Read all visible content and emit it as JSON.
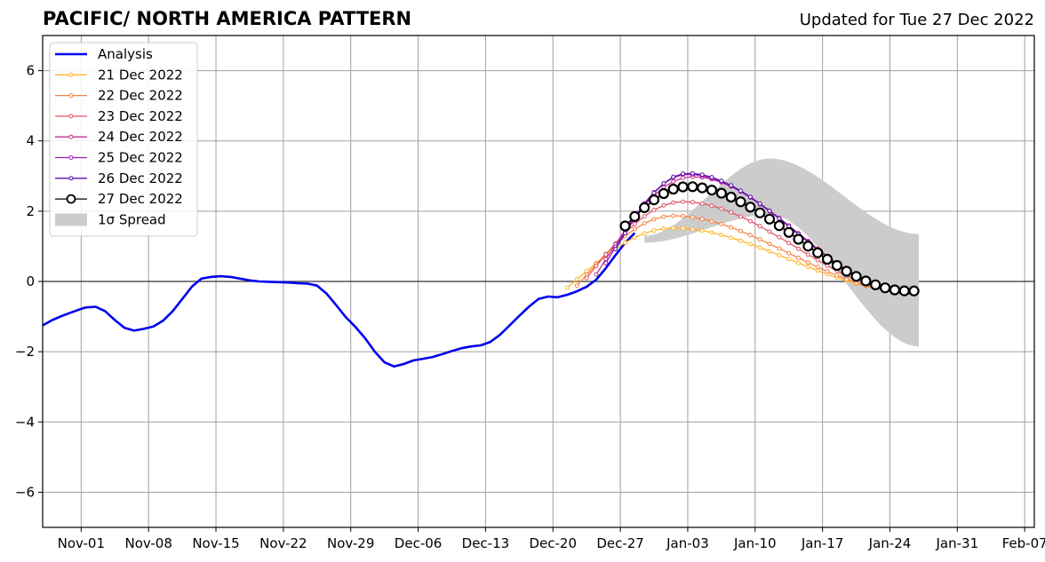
{
  "title": "PACIFIC/ NORTH AMERICA PATTERN",
  "subtitle": "Updated for Tue 27 Dec 2022",
  "chart_data": {
    "type": "line",
    "title": "PACIFIC/ NORTH AMERICA PATTERN",
    "subtitle": "Updated for Tue 27 Dec 2022",
    "xlabel": "",
    "ylabel": "",
    "x_range_days": [
      -4,
      99
    ],
    "ylim": [
      -7,
      7
    ],
    "y_ticks": [
      -6,
      -4,
      -2,
      0,
      2,
      4,
      6
    ],
    "x_tick_days": [
      0,
      7,
      14,
      21,
      28,
      35,
      42,
      49,
      56,
      63,
      70,
      77,
      84,
      91,
      98
    ],
    "x_tick_labels": [
      "Nov-01",
      "Nov-08",
      "Nov-15",
      "Nov-22",
      "Nov-29",
      "Dec-06",
      "Dec-13",
      "Dec-20",
      "Dec-27",
      "Jan-03",
      "Jan-10",
      "Jan-17",
      "Jan-24",
      "Jan-31",
      "Feb-07"
    ],
    "grid": true,
    "legend_position": "top-left",
    "analysis": {
      "name": "Analysis",
      "color": "#0000ee",
      "start_date": "Oct 28",
      "points": [
        [
          -4,
          -1.25
        ],
        [
          -3,
          -1.1
        ],
        [
          -2,
          -0.98
        ],
        [
          -1,
          -0.88
        ],
        [
          0,
          -0.78
        ],
        [
          0.5,
          -0.74
        ],
        [
          1.5,
          -0.72
        ],
        [
          2.5,
          -0.85
        ],
        [
          3.5,
          -1.1
        ],
        [
          4.5,
          -1.32
        ],
        [
          5.5,
          -1.4
        ],
        [
          6.5,
          -1.35
        ],
        [
          7.5,
          -1.28
        ],
        [
          8.5,
          -1.12
        ],
        [
          9.5,
          -0.85
        ],
        [
          10.5,
          -0.5
        ],
        [
          11.5,
          -0.15
        ],
        [
          12.5,
          0.08
        ],
        [
          13.5,
          0.13
        ],
        [
          14.5,
          0.15
        ],
        [
          15.5,
          0.13
        ],
        [
          16.5,
          0.08
        ],
        [
          17.5,
          0.03
        ],
        [
          18.5,
          0.0
        ],
        [
          19.5,
          -0.01
        ],
        [
          20.5,
          -0.02
        ],
        [
          21.5,
          -0.03
        ],
        [
          22.5,
          -0.05
        ],
        [
          23.5,
          -0.06
        ],
        [
          24.5,
          -0.12
        ],
        [
          25.5,
          -0.35
        ],
        [
          26.5,
          -0.68
        ],
        [
          27.5,
          -1.02
        ],
        [
          28.5,
          -1.3
        ],
        [
          29.5,
          -1.62
        ],
        [
          30.5,
          -2.0
        ],
        [
          31.5,
          -2.3
        ],
        [
          32.5,
          -2.42
        ],
        [
          33.5,
          -2.35
        ],
        [
          34.5,
          -2.25
        ],
        [
          35.5,
          -2.2
        ],
        [
          36.5,
          -2.15
        ],
        [
          37.5,
          -2.07
        ],
        [
          38.5,
          -1.98
        ],
        [
          39.5,
          -1.9
        ],
        [
          40.5,
          -1.85
        ],
        [
          41.5,
          -1.82
        ],
        [
          42.5,
          -1.72
        ],
        [
          43.5,
          -1.52
        ],
        [
          44.5,
          -1.25
        ],
        [
          45.5,
          -0.98
        ],
        [
          46.5,
          -0.72
        ],
        [
          47.5,
          -0.5
        ],
        [
          48.5,
          -0.43
        ],
        [
          49.5,
          -0.45
        ],
        [
          50.5,
          -0.38
        ],
        [
          51.5,
          -0.28
        ],
        [
          52.5,
          -0.15
        ],
        [
          53.5,
          0.05
        ],
        [
          54.5,
          0.38
        ],
        [
          55.5,
          0.75
        ],
        [
          56.5,
          1.1
        ],
        [
          57.5,
          1.38
        ]
      ]
    },
    "spread": {
      "name": "1σ Spread",
      "color": "#cccccc",
      "start_day": 58.5,
      "end_day": 87,
      "peak_day": 71.5,
      "upper_peak": 3.5,
      "lower_peak": 1.9,
      "upper_end": 1.35,
      "lower_end": -1.85
    },
    "forecasts": [
      {
        "name": "21 Dec 2022",
        "color": "#ffb52e",
        "start_day": 50.5,
        "start_value": -0.18,
        "peak_day": 61.5,
        "peak_value": 1.52,
        "end_value": -0.28,
        "marker_size": 2
      },
      {
        "name": "22 Dec 2022",
        "color": "#f58442",
        "start_day": 51.5,
        "start_value": -0.12,
        "peak_day": 61.5,
        "peak_value": 1.87,
        "end_value": -0.3,
        "marker_size": 2
      },
      {
        "name": "23 Dec 2022",
        "color": "#e05662",
        "start_day": 52.5,
        "start_value": 0.1,
        "peak_day": 62.5,
        "peak_value": 2.27,
        "end_value": -0.3,
        "marker_size": 2
      },
      {
        "name": "24 Dec 2022",
        "color": "#c0358f",
        "start_day": 53.5,
        "start_value": 0.2,
        "peak_day": 63.5,
        "peak_value": 2.98,
        "end_value": -0.32,
        "marker_size": 2
      },
      {
        "name": "25 Dec 2022",
        "color": "#9b1db1",
        "start_day": 54.5,
        "start_value": 0.52,
        "peak_day": 63.0,
        "peak_value": 3.05,
        "end_value": -0.33,
        "marker_size": 2
      },
      {
        "name": "26 Dec 2022",
        "color": "#5b10a8",
        "start_day": 55.5,
        "start_value": 0.92,
        "peak_day": 63.0,
        "peak_value": 3.08,
        "end_value": -0.35,
        "marker_size": 2
      },
      {
        "name": "27 Dec 2022",
        "color": "#000000",
        "start_day": 56.5,
        "start_value": 1.58,
        "peak_day": 63.0,
        "peak_value": 2.7,
        "end_value": -0.27,
        "marker_size": 5
      }
    ]
  }
}
